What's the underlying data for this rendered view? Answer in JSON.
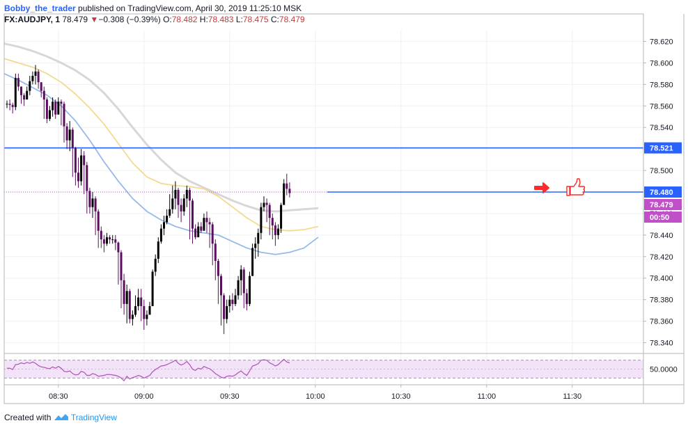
{
  "header": {
    "author": "Bobby_the_trader",
    "published": "published on TradingView.com, April 30, 2019 11:25:10 MSK",
    "symbol": "FX:AUDJPY, 1",
    "last": "78.479",
    "change_arrow": "▼",
    "change": "−0.308 (−0.39%)",
    "o_label": "O:",
    "o_value": "78.482",
    "h_label": "H:",
    "h_value": "78.483",
    "l_label": "L:",
    "l_value": "78.475",
    "c_label": "C:",
    "c_value": "78.479"
  },
  "footer": {
    "created_with": "Created with",
    "brand": "TradingView",
    "brand_icon": "tradingview-logo-icon"
  },
  "colors": {
    "up_candle": "#000000",
    "down_candle": "#5b0f5f",
    "ma_fast": "#8fb6e8",
    "ma_mid": "#f1d88a",
    "ma_slow": "#d5d5d5",
    "level_line": "#2962ff",
    "price_line": "#c050c8",
    "rsi_line": "#b050b8",
    "rsi_band": "#f3e3f8",
    "arrow": "#ff2a2a"
  },
  "chart_data": [
    {
      "type": "candlestick",
      "interval_minutes": 1,
      "time_start": "08:12",
      "time_labels": [
        "08:30",
        "09:00",
        "09:30",
        "10:00",
        "10:30",
        "11:00",
        "11:30"
      ],
      "y_ticks": [
        "78.620",
        "78.600",
        "78.580",
        "78.560",
        "78.540",
        "78.520",
        "78.500",
        "78.480",
        "78.460",
        "78.440",
        "78.420",
        "78.400",
        "78.380",
        "78.360",
        "78.340"
      ],
      "ylim": [
        78.33,
        78.63
      ],
      "close": [
        78.562,
        78.561,
        78.559,
        78.586,
        78.578,
        78.57,
        78.566,
        78.574,
        78.583,
        78.588,
        78.592,
        78.582,
        78.574,
        78.566,
        78.548,
        78.556,
        78.564,
        78.552,
        78.564,
        78.562,
        78.541,
        78.528,
        78.538,
        78.521,
        78.498,
        78.49,
        78.514,
        78.505,
        78.481,
        78.466,
        78.474,
        78.462,
        78.444,
        78.436,
        78.432,
        78.438,
        78.436,
        78.436,
        78.433,
        78.424,
        78.398,
        78.376,
        78.388,
        78.362,
        78.366,
        78.374,
        78.382,
        78.374,
        78.362,
        78.366,
        78.374,
        78.406,
        78.418,
        78.434,
        78.446,
        78.452,
        78.458,
        78.464,
        78.474,
        78.482,
        78.468,
        78.462,
        78.474,
        78.482,
        78.472,
        78.446,
        78.438,
        78.448,
        78.444,
        78.456,
        78.452,
        78.45,
        78.432,
        78.416,
        78.402,
        78.384,
        78.362,
        78.374,
        78.38,
        78.376,
        78.384,
        78.398,
        78.408,
        78.386,
        78.376,
        78.402,
        78.428,
        78.432,
        78.442,
        78.466,
        78.47,
        78.468,
        78.456,
        78.449,
        78.44,
        78.446,
        78.468,
        78.488,
        78.483,
        78.479
      ],
      "high": [
        78.565,
        78.566,
        78.563,
        78.59,
        78.59,
        78.578,
        78.572,
        78.578,
        78.588,
        78.592,
        78.598,
        78.594,
        78.582,
        78.578,
        78.568,
        78.56,
        78.568,
        78.566,
        78.568,
        78.566,
        78.564,
        78.544,
        78.546,
        78.54,
        78.522,
        78.512,
        78.52,
        78.518,
        78.508,
        78.484,
        78.48,
        78.476,
        78.464,
        78.448,
        78.44,
        78.442,
        78.44,
        78.44,
        78.44,
        78.434,
        78.426,
        78.404,
        78.394,
        78.39,
        78.37,
        78.384,
        78.39,
        78.39,
        78.38,
        78.37,
        78.378,
        78.408,
        78.422,
        78.438,
        78.45,
        78.458,
        78.464,
        78.478,
        78.486,
        78.49,
        78.484,
        78.474,
        78.478,
        78.486,
        78.484,
        78.474,
        78.45,
        78.452,
        78.452,
        78.46,
        78.462,
        78.456,
        78.452,
        78.436,
        78.418,
        78.404,
        78.386,
        78.38,
        78.384,
        78.386,
        78.39,
        78.402,
        78.412,
        78.41,
        78.39,
        78.406,
        78.432,
        78.438,
        78.446,
        78.47,
        78.476,
        78.474,
        78.47,
        78.46,
        78.452,
        78.45,
        78.47,
        78.492,
        78.497,
        78.489
      ],
      "low": [
        78.558,
        78.556,
        78.553,
        78.556,
        78.574,
        78.562,
        78.56,
        78.566,
        78.57,
        78.58,
        78.58,
        78.576,
        78.568,
        78.548,
        78.544,
        78.546,
        78.55,
        78.548,
        78.552,
        78.542,
        78.526,
        78.52,
        78.518,
        78.494,
        78.486,
        78.484,
        78.486,
        78.478,
        78.46,
        78.46,
        78.456,
        78.44,
        78.428,
        78.428,
        78.424,
        78.43,
        78.432,
        78.432,
        78.426,
        78.394,
        78.372,
        78.366,
        78.358,
        78.358,
        78.356,
        78.364,
        78.37,
        78.36,
        78.352,
        78.356,
        78.37,
        78.386,
        78.402,
        78.414,
        78.432,
        78.44,
        78.45,
        78.456,
        78.46,
        78.464,
        78.456,
        78.452,
        78.458,
        78.466,
        78.436,
        78.432,
        78.436,
        78.438,
        78.442,
        78.444,
        78.442,
        78.428,
        78.412,
        78.398,
        78.376,
        78.356,
        78.348,
        78.358,
        78.368,
        78.37,
        78.374,
        78.38,
        78.384,
        78.372,
        78.37,
        78.374,
        78.402,
        78.418,
        78.42,
        78.436,
        78.462,
        78.452,
        78.44,
        78.436,
        78.43,
        78.436,
        78.442,
        78.468,
        78.477,
        78.475
      ],
      "series": [
        {
          "values_close_based": true
        },
        {
          "name": "",
          "ma_fast": [
            78.59,
            78.584,
            78.577,
            78.57,
            78.56,
            78.546,
            78.528,
            78.508,
            78.49,
            78.474,
            78.462,
            78.454,
            78.448,
            78.444,
            78.442,
            78.44,
            78.434,
            78.428,
            78.424,
            78.422,
            78.424,
            78.428,
            78.438
          ],
          "ma_mid": [
            78.604,
            78.6,
            78.596,
            78.59,
            78.582,
            78.571,
            78.558,
            78.543,
            78.525,
            78.507,
            78.494,
            78.488,
            78.486,
            78.485,
            78.483,
            78.476,
            78.466,
            78.456,
            78.448,
            78.445,
            78.444,
            78.445,
            78.448
          ],
          "ma_slow": [
            78.618,
            78.615,
            78.611,
            78.606,
            78.6,
            78.593,
            78.584,
            78.572,
            78.557,
            78.54,
            78.524,
            78.51,
            78.498,
            78.49,
            78.484,
            78.478,
            78.472,
            78.467,
            78.463,
            78.462,
            78.463,
            78.464,
            78.465
          ]
        }
      ],
      "levels": {
        "support_resistance": 78.521,
        "level_2": 78.48,
        "last_price": 78.479
      },
      "price_labels": {
        "level_1": "78.521",
        "level_2": "78.480",
        "last": "78.479",
        "countdown": "00:50"
      }
    },
    {
      "type": "line",
      "panel": "RSI",
      "y_tick": "50.0000",
      "ylim": [
        15,
        85
      ],
      "band": [
        30,
        70
      ],
      "values": [
        52,
        52,
        49,
        60,
        61,
        64,
        62,
        65,
        63,
        66,
        63,
        58,
        55,
        54,
        52,
        51,
        55,
        52,
        56,
        52,
        45,
        44,
        46,
        40,
        37,
        38,
        45,
        43,
        36,
        36,
        40,
        38,
        34,
        35,
        36,
        38,
        38,
        37,
        36,
        34,
        30,
        24,
        34,
        28,
        31,
        33,
        36,
        34,
        30,
        33,
        36,
        44,
        49,
        53,
        57,
        58,
        60,
        63,
        66,
        70,
        63,
        59,
        62,
        67,
        60,
        50,
        47,
        52,
        50,
        56,
        53,
        51,
        46,
        40,
        36,
        32,
        30,
        34,
        35,
        34,
        37,
        42,
        46,
        40,
        36,
        46,
        57,
        59,
        62,
        70,
        71,
        70,
        64,
        61,
        57,
        60,
        66,
        72,
        66,
        64
      ]
    }
  ]
}
